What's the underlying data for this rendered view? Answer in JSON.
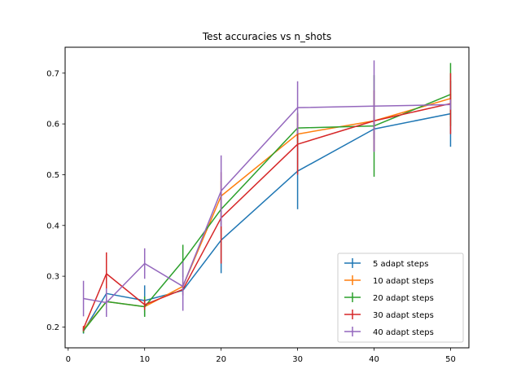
{
  "chart_data": {
    "type": "line",
    "title": "Test accuracies vs n_shots",
    "xlabel": "",
    "ylabel": "",
    "xlim": [
      -0.4,
      52.4
    ],
    "ylim": [
      0.159,
      0.751
    ],
    "xticks": [
      0,
      10,
      20,
      30,
      40,
      50
    ],
    "xtick_labels": [
      "0",
      "10",
      "20",
      "30",
      "40",
      "50"
    ],
    "yticks": [
      0.2,
      0.3,
      0.4,
      0.5,
      0.6,
      0.7
    ],
    "ytick_labels": [
      "0.2",
      "0.3",
      "0.4",
      "0.5",
      "0.6",
      "0.7"
    ],
    "x": [
      2,
      5,
      10,
      15,
      20,
      30,
      40,
      50
    ],
    "grid": false,
    "legend_position": "lower-right",
    "series": [
      {
        "name": "5 adapt steps",
        "color": "#1f77b4",
        "values": [
          0.192,
          0.266,
          0.252,
          0.272,
          0.371,
          0.507,
          0.59,
          0.62
        ],
        "errors": [
          0.005,
          0.01,
          0.03,
          0.01,
          0.065,
          0.075,
          0.02,
          0.065
        ]
      },
      {
        "name": "10 adapt steps",
        "color": "#ff7f0e",
        "values": [
          0.195,
          0.25,
          0.24,
          0.28,
          0.458,
          0.58,
          0.606,
          0.65
        ],
        "errors": [
          0.005,
          0.005,
          0.01,
          0.01,
          0.03,
          0.01,
          0.01,
          0.01
        ]
      },
      {
        "name": "20 adapt steps",
        "color": "#2ca02c",
        "values": [
          0.193,
          0.25,
          0.24,
          0.33,
          0.432,
          0.592,
          0.596,
          0.658
        ],
        "errors": [
          0.005,
          0.005,
          0.02,
          0.032,
          0.03,
          0.03,
          0.1,
          0.062
        ]
      },
      {
        "name": "30 adapt steps",
        "color": "#d62728",
        "values": [
          0.197,
          0.305,
          0.244,
          0.274,
          0.415,
          0.56,
          0.606,
          0.64
        ],
        "errors": [
          0.005,
          0.042,
          0.01,
          0.01,
          0.09,
          0.06,
          0.06,
          0.06
        ]
      },
      {
        "name": "40 adapt steps",
        "color": "#9467bd",
        "values": [
          0.256,
          0.248,
          0.325,
          0.28,
          0.468,
          0.632,
          0.635,
          0.638
        ],
        "errors": [
          0.035,
          0.028,
          0.03,
          0.048,
          0.07,
          0.052,
          0.09,
          0.01
        ]
      }
    ]
  }
}
